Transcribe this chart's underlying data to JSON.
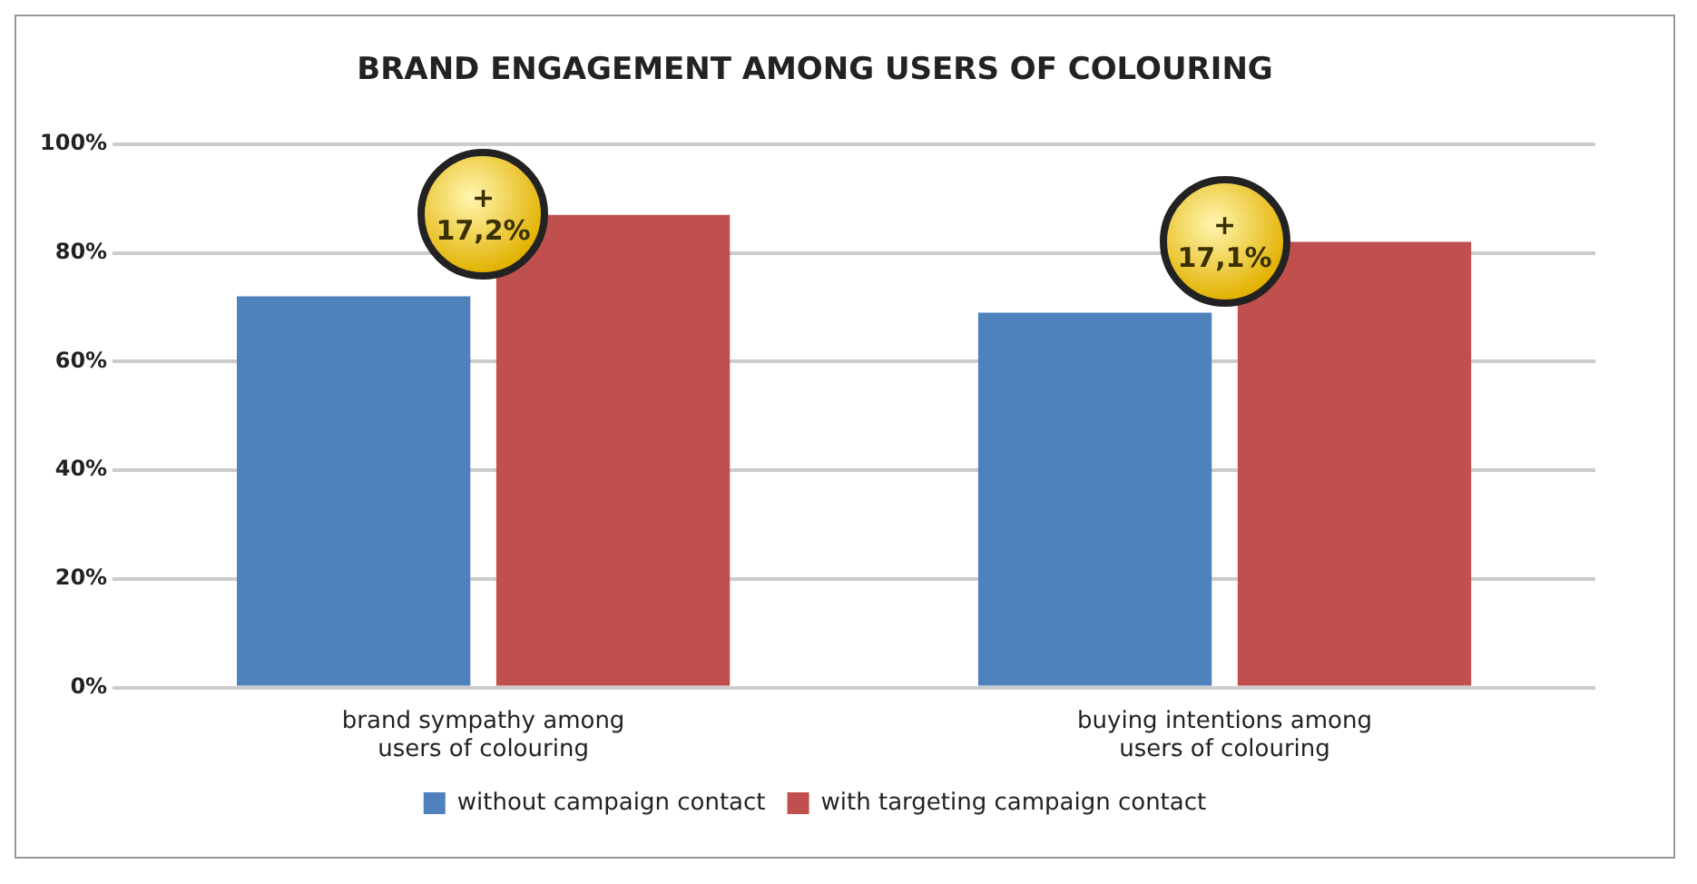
{
  "chart_data": {
    "type": "bar",
    "title": "BRAND ENGAGEMENT AMONG USERS OF COLOURING",
    "categories": [
      "brand sympathy among users of colouring",
      "buying intentions among users of colouring"
    ],
    "series": [
      {
        "name": "without campaign contact",
        "color": "#4f81bd",
        "values": [
          72,
          69
        ]
      },
      {
        "name": "with targeting campaign contact",
        "color": "#c0504d",
        "values": [
          87,
          82
        ]
      }
    ],
    "ylim": [
      0,
      100
    ],
    "yticks": [
      {
        "value": 0,
        "label": "0%"
      },
      {
        "value": 20,
        "label": "20%"
      },
      {
        "value": 40,
        "label": "40%"
      },
      {
        "value": 60,
        "label": "60%"
      },
      {
        "value": 80,
        "label": "80%"
      },
      {
        "value": 100,
        "label": "100%"
      }
    ],
    "grid": "y",
    "legend": "bottom",
    "annotations": [
      "+ 17,2%",
      "+ 17,1%"
    ]
  }
}
